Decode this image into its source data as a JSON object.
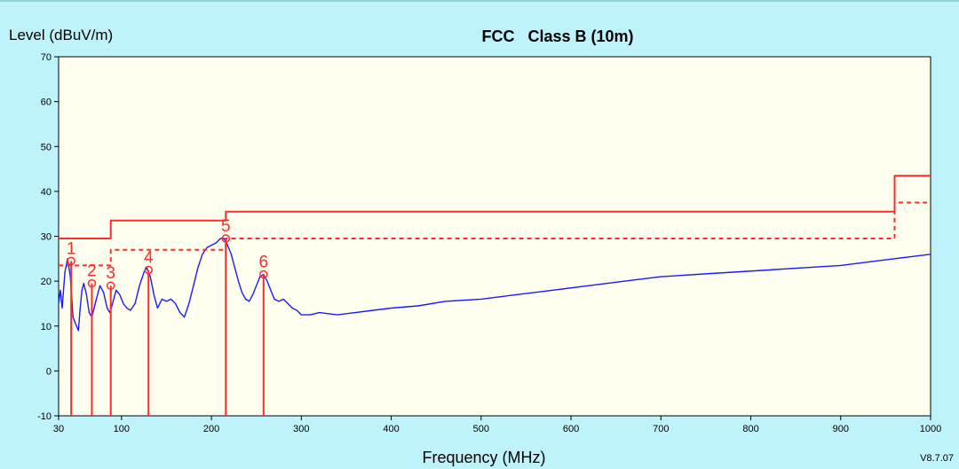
{
  "chart_data": {
    "type": "line",
    "title": "FCC   Class B (10m)",
    "ylabel": "Level (dBuV/m)",
    "xlabel": "Frequency (MHz)",
    "version": "V8.7.07",
    "xlim": [
      30,
      1000
    ],
    "ylim": [
      -10,
      70
    ],
    "x_ticks": [
      30,
      100,
      200,
      300,
      400,
      500,
      600,
      700,
      800,
      900,
      1000
    ],
    "y_ticks": [
      -10,
      0,
      10,
      20,
      30,
      40,
      50,
      60,
      70
    ],
    "grid": false,
    "colors": {
      "trace": "#1a1aff",
      "limit": "#ff2a2a",
      "markers": "#ff2a2a",
      "plot_bg": "#fffff0"
    },
    "series": [
      {
        "style": "solid-line",
        "points": [
          [
            30,
            15
          ],
          [
            32,
            18
          ],
          [
            34,
            14
          ],
          [
            37,
            22
          ],
          [
            40,
            25
          ],
          [
            43,
            21
          ],
          [
            46,
            12
          ],
          [
            50,
            10
          ],
          [
            52,
            9
          ],
          [
            54,
            14
          ],
          [
            56,
            18
          ],
          [
            58,
            19.5
          ],
          [
            61,
            17
          ],
          [
            64,
            13
          ],
          [
            67,
            12
          ],
          [
            72,
            16
          ],
          [
            76,
            19
          ],
          [
            80,
            17.5
          ],
          [
            84,
            14
          ],
          [
            87,
            13
          ],
          [
            90,
            15
          ],
          [
            94,
            18
          ],
          [
            98,
            17
          ],
          [
            102,
            15
          ],
          [
            106,
            14
          ],
          [
            110,
            13.5
          ],
          [
            115,
            15
          ],
          [
            120,
            19
          ],
          [
            125,
            22
          ],
          [
            128,
            23
          ],
          [
            132,
            21
          ],
          [
            136,
            17
          ],
          [
            140,
            14
          ],
          [
            145,
            16
          ],
          [
            150,
            15.5
          ],
          [
            155,
            16
          ],
          [
            160,
            15
          ],
          [
            165,
            13
          ],
          [
            170,
            12
          ],
          [
            175,
            15
          ],
          [
            180,
            19
          ],
          [
            185,
            23
          ],
          [
            190,
            26
          ],
          [
            195,
            27.5
          ],
          [
            200,
            28
          ],
          [
            205,
            28.5
          ],
          [
            210,
            29.5
          ],
          [
            214,
            29.5
          ],
          [
            218,
            28
          ],
          [
            222,
            26
          ],
          [
            226,
            23
          ],
          [
            230,
            20
          ],
          [
            234,
            17.5
          ],
          [
            238,
            16
          ],
          [
            242,
            15.5
          ],
          [
            246,
            17
          ],
          [
            250,
            19
          ],
          [
            254,
            21
          ],
          [
            258,
            21.5
          ],
          [
            262,
            20
          ],
          [
            266,
            18
          ],
          [
            270,
            16
          ],
          [
            275,
            15.5
          ],
          [
            280,
            16
          ],
          [
            285,
            15
          ],
          [
            290,
            14
          ],
          [
            295,
            13.5
          ],
          [
            300,
            12.5
          ],
          [
            310,
            12.5
          ],
          [
            320,
            13
          ],
          [
            340,
            12.5
          ],
          [
            360,
            13
          ],
          [
            380,
            13.5
          ],
          [
            400,
            14
          ],
          [
            430,
            14.5
          ],
          [
            460,
            15.5
          ],
          [
            500,
            16
          ],
          [
            540,
            17
          ],
          [
            580,
            18
          ],
          [
            620,
            19
          ],
          [
            660,
            20
          ],
          [
            700,
            21
          ],
          [
            740,
            21.5
          ],
          [
            780,
            22
          ],
          [
            820,
            22.5
          ],
          [
            860,
            23
          ],
          [
            900,
            23.5
          ],
          [
            940,
            24.5
          ],
          [
            960,
            25
          ],
          [
            980,
            25.5
          ],
          [
            1000,
            26
          ]
        ]
      },
      {
        "style": "solid-step",
        "points": [
          [
            30,
            29.5
          ],
          [
            88,
            29.5
          ],
          [
            88,
            33.5
          ],
          [
            216,
            33.5
          ],
          [
            216,
            35.5
          ],
          [
            960,
            35.5
          ],
          [
            960,
            43.5
          ],
          [
            1000,
            43.5
          ]
        ]
      },
      {
        "style": "dashed-step",
        "points": [
          [
            30,
            23.5
          ],
          [
            88,
            23.5
          ],
          [
            88,
            27
          ],
          [
            216,
            27
          ],
          [
            216,
            29.5
          ],
          [
            960,
            29.5
          ],
          [
            960,
            37.5
          ],
          [
            1000,
            37.5
          ]
        ]
      }
    ],
    "markers": [
      {
        "label": "1",
        "x": 44,
        "y": 24.5
      },
      {
        "label": "2",
        "x": 67,
        "y": 19.5
      },
      {
        "label": "3",
        "x": 88,
        "y": 19
      },
      {
        "label": "4",
        "x": 130,
        "y": 22.5
      },
      {
        "label": "5",
        "x": 216,
        "y": 29.5
      },
      {
        "label": "6",
        "x": 258,
        "y": 21.5
      }
    ]
  }
}
